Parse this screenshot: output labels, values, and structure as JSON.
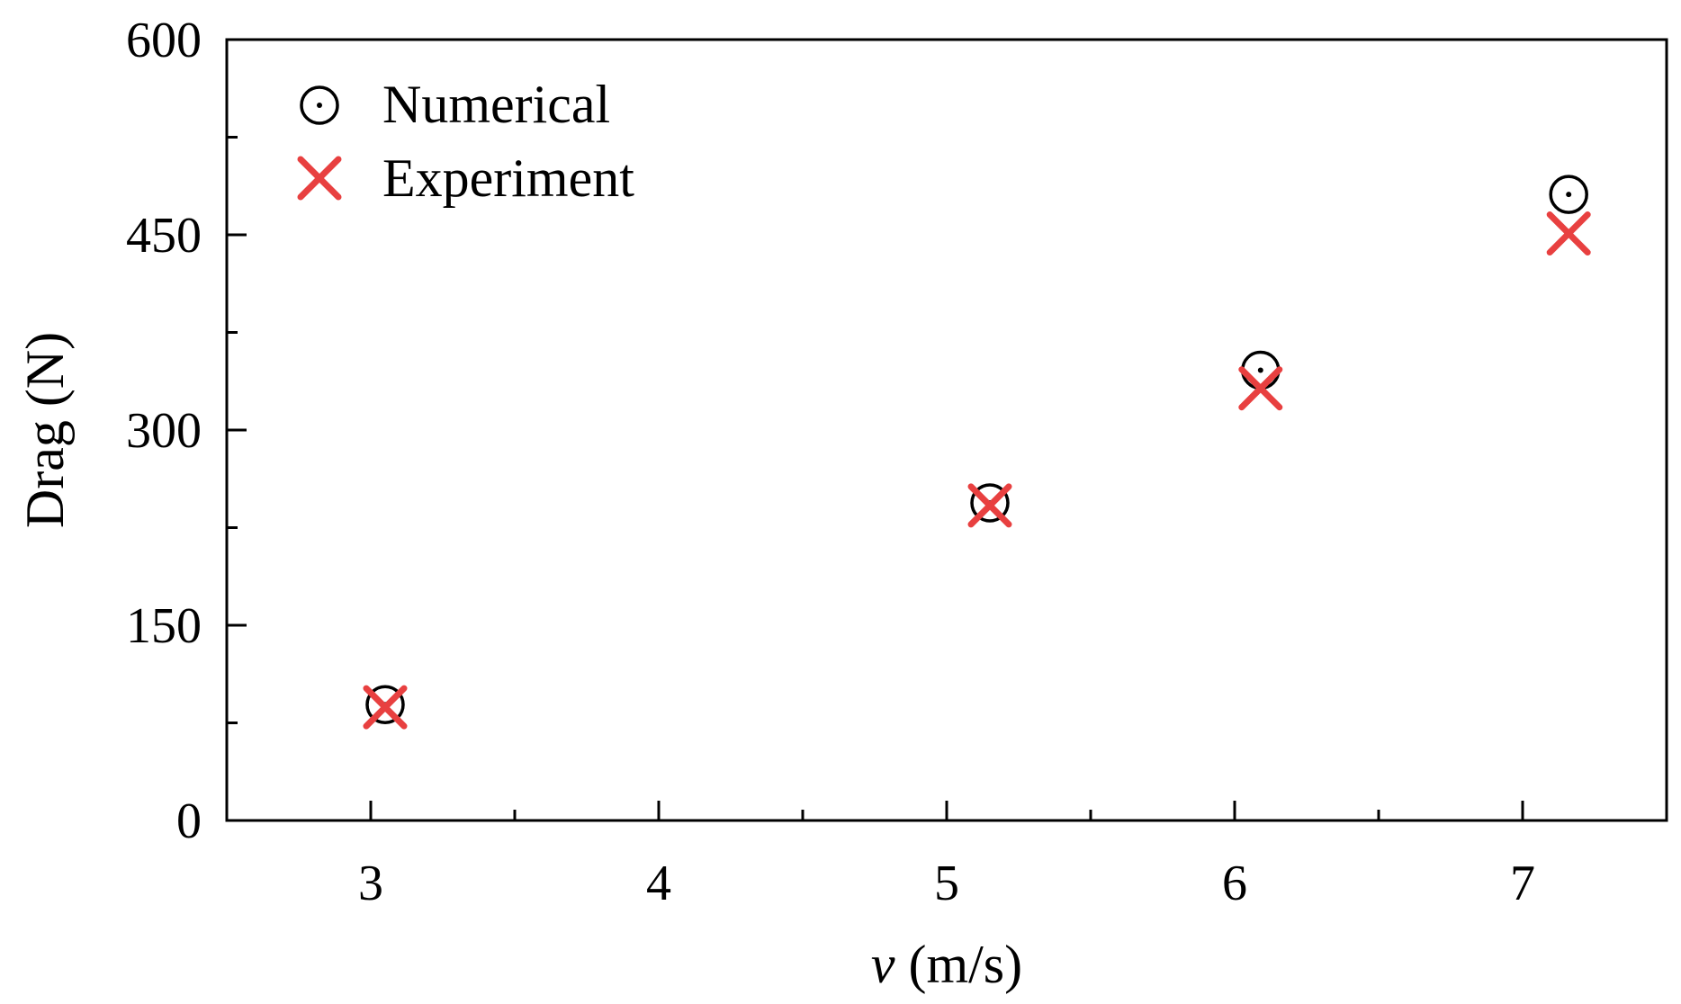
{
  "chart_data": {
    "type": "scatter",
    "title": "",
    "xlabel_var": "v",
    "xlabel_unit": " (m/s)",
    "ylabel": "Drag (N)",
    "xlim": [
      2.5,
      7.5
    ],
    "ylim": [
      0,
      600
    ],
    "xticks": [
      3,
      4,
      5,
      6,
      7
    ],
    "xticks_minor": [
      3.5,
      4.5,
      5.5,
      6.5
    ],
    "yticks": [
      0,
      150,
      300,
      450,
      600
    ],
    "yticks_minor": [
      75,
      225,
      375,
      525
    ],
    "xtick_labels": [
      "3",
      "4",
      "5",
      "6",
      "7"
    ],
    "ytick_labels": [
      "0",
      "150",
      "300",
      "450",
      "600"
    ],
    "grid": false,
    "legend_position": "top-left",
    "series": [
      {
        "name": "Numerical",
        "marker": "circle-dot",
        "color": "#000000",
        "x": [
          3.05,
          5.15,
          6.09,
          7.16
        ],
        "y": [
          89,
          244,
          346,
          481
        ]
      },
      {
        "name": "Experiment",
        "marker": "x",
        "color": "#e84040",
        "x": [
          3.05,
          5.15,
          6.09,
          7.16
        ],
        "y": [
          87,
          242,
          332,
          451
        ]
      }
    ]
  }
}
